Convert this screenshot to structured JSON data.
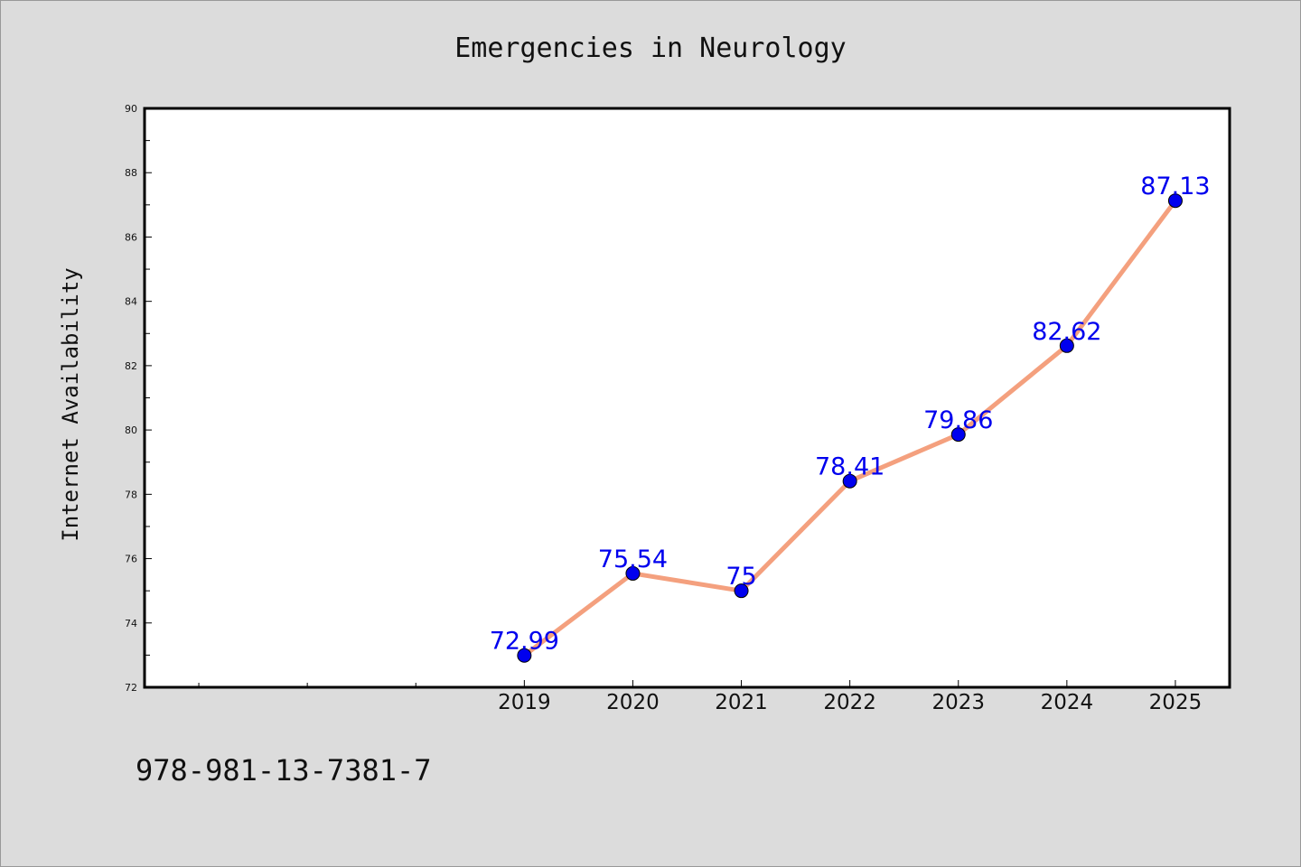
{
  "chart_data": {
    "type": "line",
    "title": "Emergencies in Neurology",
    "xlabel": "",
    "ylabel": "Internet Availability",
    "categories": [
      "2019",
      "2020",
      "2021",
      "2022",
      "2023",
      "2024",
      "2025"
    ],
    "series": [
      {
        "values": [
          72.99,
          75.54,
          75,
          78.41,
          79.86,
          82.62,
          87.13
        ]
      }
    ],
    "data_labels": [
      "72.99",
      "75.54",
      "75",
      "78.41",
      "79.86",
      "82.62",
      "87.13"
    ],
    "ylim": [
      72,
      90
    ],
    "yticks": [
      72,
      74,
      76,
      78,
      80,
      82,
      84,
      86,
      88,
      90
    ],
    "ytick_labels": [
      "72",
      "74",
      "76",
      "78",
      "80",
      "82",
      "84",
      "86",
      "88",
      "90"
    ],
    "grid": false,
    "legend": "none",
    "colors": {
      "line": "#f4a07e",
      "marker": "#0000ee",
      "label": "#0000ee",
      "background": "#dcdcdc",
      "plot_area": "#ffffff"
    }
  },
  "footer_text": "978-981-13-7381-7"
}
